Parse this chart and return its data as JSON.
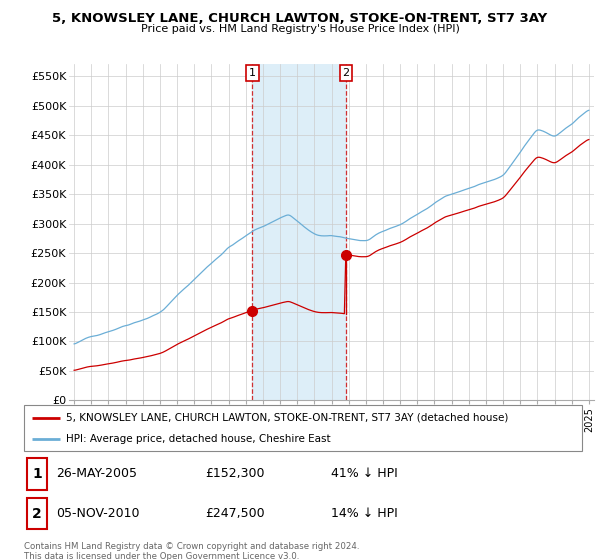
{
  "title": "5, KNOWSLEY LANE, CHURCH LAWTON, STOKE-ON-TRENT, ST7 3AY",
  "subtitle": "Price paid vs. HM Land Registry's House Price Index (HPI)",
  "ylim": [
    0,
    560000
  ],
  "yticks": [
    0,
    50000,
    100000,
    150000,
    200000,
    250000,
    300000,
    350000,
    400000,
    450000,
    500000,
    550000
  ],
  "ytick_labels": [
    "£0",
    "£50K",
    "£100K",
    "£150K",
    "£200K",
    "£250K",
    "£300K",
    "£350K",
    "£400K",
    "£450K",
    "£500K",
    "£550K"
  ],
  "line1_color": "#cc0000",
  "line2_color": "#6baed6",
  "sale1_year": 2005.38,
  "sale1_price": 152300,
  "sale2_year": 2010.84,
  "sale2_price": 247500,
  "legend_line1": "5, KNOWSLEY LANE, CHURCH LAWTON, STOKE-ON-TRENT, ST7 3AY (detached house)",
  "legend_line2": "HPI: Average price, detached house, Cheshire East",
  "annotation1_date": "26-MAY-2005",
  "annotation1_price": "£152,300",
  "annotation1_pct": "41% ↓ HPI",
  "annotation2_date": "05-NOV-2010",
  "annotation2_price": "£247,500",
  "annotation2_pct": "14% ↓ HPI",
  "footer": "Contains HM Land Registry data © Crown copyright and database right 2024.\nThis data is licensed under the Open Government Licence v3.0.",
  "grid_color": "#cccccc",
  "shade_color": "#ddeef8"
}
